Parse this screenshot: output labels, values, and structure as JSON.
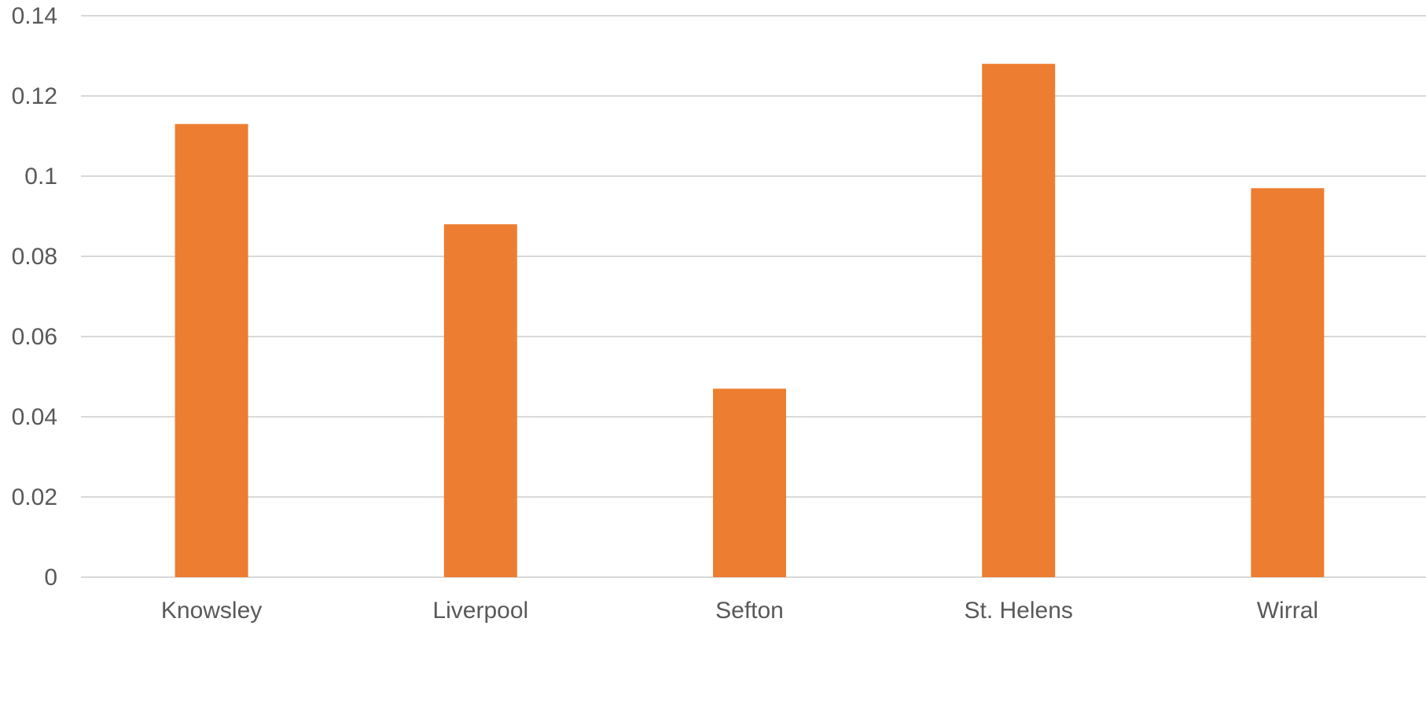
{
  "chart_data": {
    "type": "bar",
    "title": "",
    "xlabel": "",
    "ylabel": "",
    "categories": [
      "Knowsley",
      "Liverpool",
      "Sefton",
      "St. Helens",
      "Wirral"
    ],
    "values": [
      0.113,
      0.088,
      0.047,
      0.128,
      0.097
    ],
    "ylim": [
      0,
      0.14
    ],
    "yticks": [
      0,
      0.02,
      0.04,
      0.06,
      0.08,
      0.1,
      0.12,
      0.14
    ],
    "ytick_labels": [
      "0",
      "0.02",
      "0.04",
      "0.06",
      "0.08",
      "0.1",
      "0.12",
      "0.14"
    ],
    "grid": true,
    "legend": "none",
    "bar_color": "#ED7D31",
    "grid_color": "#D9D9D9",
    "text_color": "#595959"
  }
}
